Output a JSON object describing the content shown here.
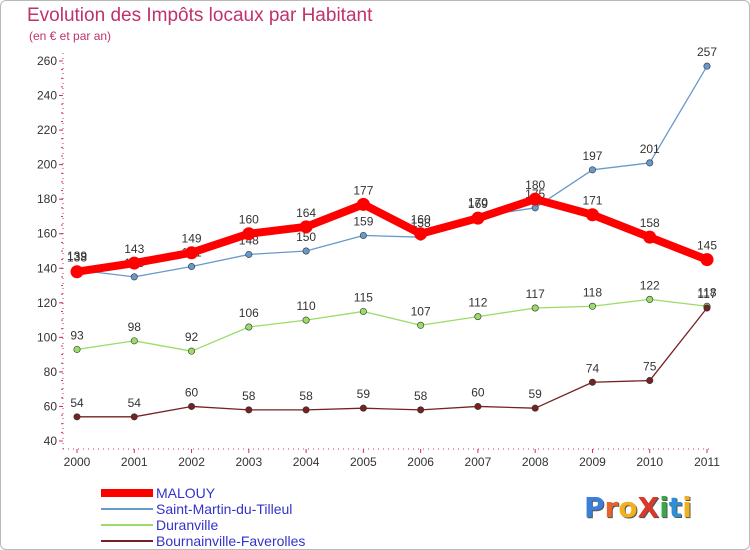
{
  "title": "Evolution des Impôts locaux par Habitant",
  "subtitle": "(en € et par an)",
  "logo": {
    "text": "ProXiti",
    "letters": [
      "P",
      "r",
      "o",
      "X",
      "i",
      "t",
      "i"
    ]
  },
  "chart_data": {
    "type": "line",
    "title": "Evolution des Impôts locaux par Habitant",
    "subtitle": "(en € et par an)",
    "xlabel": "",
    "ylabel": "",
    "categories": [
      "2000",
      "2001",
      "2002",
      "2003",
      "2004",
      "2005",
      "2006",
      "2007",
      "2008",
      "2009",
      "2010",
      "2011"
    ],
    "ylim": [
      40,
      260
    ],
    "yticks": [
      40,
      60,
      80,
      100,
      120,
      140,
      160,
      180,
      200,
      220,
      240,
      260
    ],
    "grid": false,
    "legend_position": "bottom-left",
    "series": [
      {
        "name": "MALOUY",
        "color": "#ff0000",
        "values": [
          138,
          143,
          149,
          160,
          164,
          177,
          160,
          169,
          180,
          171,
          158,
          145
        ]
      },
      {
        "name": "Saint-Martin-du-Tilleul",
        "color": "#6699cc",
        "values": [
          139,
          135,
          141,
          148,
          150,
          159,
          158,
          170,
          175,
          197,
          201,
          257
        ]
      },
      {
        "name": "Duranville",
        "color": "#99dd66",
        "values": [
          93,
          98,
          92,
          106,
          110,
          115,
          107,
          112,
          117,
          118,
          122,
          118
        ]
      },
      {
        "name": "Bournainville-Faverolles",
        "color": "#772222",
        "values": [
          54,
          54,
          60,
          58,
          58,
          59,
          58,
          60,
          59,
          74,
          75,
          117
        ]
      }
    ]
  }
}
